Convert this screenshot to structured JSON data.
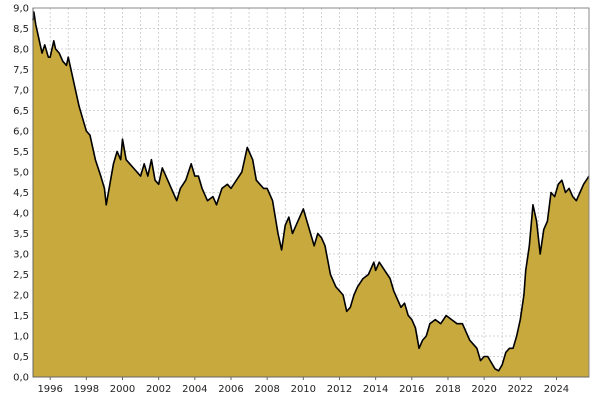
{
  "chart_data": {
    "type": "area",
    "title": "",
    "xlabel": "",
    "ylabel": "",
    "xlim": [
      1995.05,
      2025.8
    ],
    "ylim": [
      0,
      9.0
    ],
    "grid": true,
    "legend": "none",
    "x_tick_labels": [
      "1996",
      "1998",
      "2000",
      "2002",
      "2004",
      "2006",
      "2008",
      "2010",
      "2012",
      "2014",
      "2016",
      "2018",
      "2020",
      "2022",
      "2024"
    ],
    "x_tick_values": [
      1996,
      1998,
      2000,
      2002,
      2004,
      2006,
      2008,
      2010,
      2012,
      2014,
      2016,
      2018,
      2020,
      2022,
      2024
    ],
    "y_tick_labels": [
      "0,0",
      "0,5",
      "1,0",
      "1,5",
      "2,0",
      "2,5",
      "3,0",
      "3,5",
      "4,0",
      "4,5",
      "5,0",
      "5,5",
      "6,0",
      "6,5",
      "7,0",
      "7,5",
      "8,0",
      "8,5",
      "9,0"
    ],
    "y_tick_values": [
      0,
      0.5,
      1,
      1.5,
      2,
      2.5,
      3,
      3.5,
      4,
      4.5,
      5,
      5.5,
      6,
      6.5,
      7,
      7.5,
      8,
      8.5,
      9
    ],
    "colors": {
      "area_fill": "#c8a93e",
      "line": "#000000",
      "grid": "#c8c8c8",
      "background": "#ffffff"
    },
    "series": [
      {
        "x": [
          1995.05,
          1995.1,
          1995.2,
          1995.3,
          1995.4,
          1995.55,
          1995.7,
          1995.9,
          1996.0,
          1996.2,
          1996.3,
          1996.5,
          1996.7,
          1996.9,
          1997.0,
          1997.2,
          1997.4,
          1997.6,
          1997.8,
          1998.0,
          1998.2,
          1998.5,
          1998.8,
          1999.0,
          1999.1,
          1999.3,
          1999.5,
          1999.7,
          1999.9,
          2000.0,
          2000.2,
          2000.4,
          2000.6,
          2000.8,
          2001.0,
          2001.2,
          2001.4,
          2001.6,
          2001.8,
          2002.0,
          2002.2,
          2002.5,
          2002.8,
          2003.0,
          2003.2,
          2003.5,
          2003.8,
          2004.0,
          2004.2,
          2004.4,
          2004.7,
          2005.0,
          2005.2,
          2005.5,
          2005.8,
          2006.0,
          2006.3,
          2006.6,
          2006.9,
          2007.2,
          2007.4,
          2007.6,
          2007.8,
          2008.0,
          2008.3,
          2008.6,
          2008.8,
          2009.0,
          2009.2,
          2009.4,
          2009.7,
          2010.0,
          2010.2,
          2010.4,
          2010.6,
          2010.8,
          2011.0,
          2011.2,
          2011.5,
          2011.8,
          2012.0,
          2012.2,
          2012.4,
          2012.6,
          2012.8,
          2013.0,
          2013.3,
          2013.6,
          2013.9,
          2014.0,
          2014.2,
          2014.5,
          2014.8,
          2015.0,
          2015.2,
          2015.4,
          2015.6,
          2015.8,
          2016.0,
          2016.2,
          2016.4,
          2016.6,
          2016.8,
          2017.0,
          2017.3,
          2017.6,
          2017.9,
          2018.2,
          2018.5,
          2018.8,
          2019.0,
          2019.2,
          2019.4,
          2019.6,
          2019.8,
          2020.0,
          2020.2,
          2020.4,
          2020.6,
          2020.8,
          2021.0,
          2021.2,
          2021.4,
          2021.6,
          2021.8,
          2022.0,
          2022.2,
          2022.3,
          2022.5,
          2022.7,
          2022.9,
          2023.1,
          2023.3,
          2023.5,
          2023.7,
          2023.9,
          2024.1,
          2024.3,
          2024.5,
          2024.7,
          2024.9,
          2025.1,
          2025.3,
          2025.5,
          2025.8
        ],
        "y": [
          8.7,
          8.9,
          8.6,
          8.4,
          8.2,
          7.9,
          8.1,
          7.8,
          7.8,
          8.2,
          8.0,
          7.9,
          7.7,
          7.6,
          7.8,
          7.4,
          7.0,
          6.6,
          6.3,
          6.0,
          5.9,
          5.3,
          4.9,
          4.6,
          4.2,
          4.7,
          5.2,
          5.5,
          5.3,
          5.8,
          5.3,
          5.2,
          5.1,
          5.0,
          4.9,
          5.2,
          4.9,
          5.3,
          4.8,
          4.7,
          5.1,
          4.8,
          4.5,
          4.3,
          4.6,
          4.8,
          5.2,
          4.9,
          4.9,
          4.6,
          4.3,
          4.4,
          4.2,
          4.6,
          4.7,
          4.6,
          4.8,
          5.0,
          5.6,
          5.3,
          4.8,
          4.7,
          4.6,
          4.6,
          4.3,
          3.5,
          3.1,
          3.7,
          3.9,
          3.5,
          3.8,
          4.1,
          3.8,
          3.5,
          3.2,
          3.5,
          3.4,
          3.2,
          2.5,
          2.2,
          2.1,
          2.0,
          1.6,
          1.7,
          2.0,
          2.2,
          2.4,
          2.5,
          2.8,
          2.6,
          2.8,
          2.6,
          2.4,
          2.1,
          1.9,
          1.7,
          1.8,
          1.5,
          1.4,
          1.2,
          0.7,
          0.9,
          1.0,
          1.3,
          1.4,
          1.3,
          1.5,
          1.4,
          1.3,
          1.3,
          1.1,
          0.9,
          0.8,
          0.7,
          0.4,
          0.5,
          0.5,
          0.35,
          0.2,
          0.15,
          0.3,
          0.6,
          0.7,
          0.7,
          1.0,
          1.4,
          2.0,
          2.6,
          3.2,
          4.2,
          3.8,
          3.0,
          3.6,
          3.8,
          4.5,
          4.4,
          4.7,
          4.8,
          4.5,
          4.6,
          4.4,
          4.3,
          4.5,
          4.7,
          4.9
        ]
      }
    ]
  }
}
